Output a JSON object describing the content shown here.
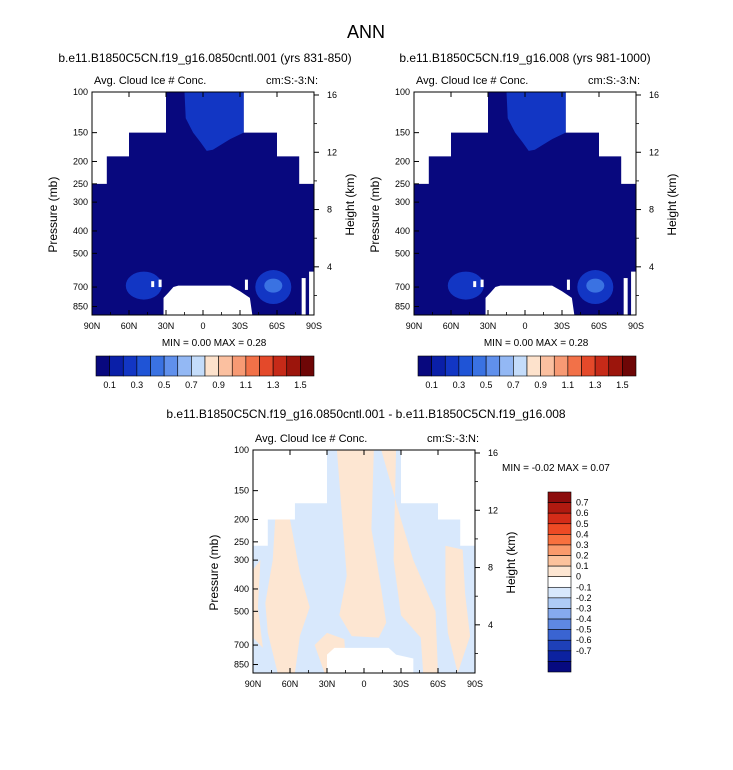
{
  "main_title": "ANN",
  "chart_data": [
    {
      "type": "heatmap",
      "title": "b.e11.B1850C5CN.f19_g16.0850cntl.001 (yrs 831-850)",
      "subtitle_left": "Avg. Cloud Ice # Conc.",
      "subtitle_right": "cm:S:-3:N:",
      "xlabel": "",
      "ylabel": "Pressure (mb)",
      "ylabel_right": "Height (km)",
      "x_ticks": [
        "90N",
        "60N",
        "30N",
        "0",
        "30S",
        "60S",
        "90S"
      ],
      "x_values": [
        90,
        60,
        30,
        0,
        -30,
        -60,
        -90
      ],
      "y_ticks": [
        "100",
        "150",
        "200",
        "250",
        "300",
        "400",
        "500",
        "700",
        "850"
      ],
      "y_values": [
        100,
        150,
        200,
        250,
        300,
        400,
        500,
        700,
        850
      ],
      "y_right_ticks": [
        "16",
        "12",
        "8",
        "4"
      ],
      "y_right_values": [
        16,
        12,
        8,
        4
      ],
      "stats": {
        "min_label": "MIN =",
        "min": "0.00",
        "max_label": "MAX =",
        "max": "0.28"
      },
      "zrange": [
        0,
        0.28
      ]
    },
    {
      "type": "heatmap",
      "title": "b.e11.B1850C5CN.f19_g16.008 (yrs 981-1000)",
      "subtitle_left": "Avg. Cloud Ice # Conc.",
      "subtitle_right": "cm:S:-3:N:",
      "xlabel": "",
      "ylabel": "Pressure (mb)",
      "ylabel_right": "Height (km)",
      "x_ticks": [
        "90N",
        "60N",
        "30N",
        "0",
        "30S",
        "60S",
        "90S"
      ],
      "x_values": [
        90,
        60,
        30,
        0,
        -30,
        -60,
        -90
      ],
      "y_ticks": [
        "100",
        "150",
        "200",
        "250",
        "300",
        "400",
        "500",
        "700",
        "850"
      ],
      "y_values": [
        100,
        150,
        200,
        250,
        300,
        400,
        500,
        700,
        850
      ],
      "y_right_ticks": [
        "16",
        "12",
        "8",
        "4"
      ],
      "y_right_values": [
        16,
        12,
        8,
        4
      ],
      "stats": {
        "min_label": "MIN =",
        "min": "0.00",
        "max_label": "MAX =",
        "max": "0.28"
      },
      "zrange": [
        0,
        0.28
      ]
    },
    {
      "type": "heatmap",
      "title": "b.e11.B1850C5CN.f19_g16.0850cntl.001 - b.e11.B1850C5CN.f19_g16.008",
      "subtitle_left": "Avg. Cloud Ice # Conc.",
      "subtitle_right": "cm:S:-3:N:",
      "xlabel": "",
      "ylabel": "Pressure (mb)",
      "ylabel_right": "Height (km)",
      "x_ticks": [
        "90N",
        "60N",
        "30N",
        "0",
        "30S",
        "60S",
        "90S"
      ],
      "x_values": [
        90,
        60,
        30,
        0,
        -30,
        -60,
        -90
      ],
      "y_ticks": [
        "100",
        "150",
        "200",
        "250",
        "300",
        "400",
        "500",
        "700",
        "850"
      ],
      "y_values": [
        100,
        150,
        200,
        250,
        300,
        400,
        500,
        700,
        850
      ],
      "y_right_ticks": [
        "16",
        "12",
        "8",
        "4"
      ],
      "y_right_values": [
        16,
        12,
        8,
        4
      ],
      "stats": {
        "min_label": "MIN =",
        "min": "-0.02",
        "max_label": "MAX =",
        "max": "0.07"
      },
      "zrange": [
        -0.02,
        0.07
      ]
    }
  ],
  "colorbar_abs": {
    "labels": [
      "0.1",
      "0.3",
      "0.5",
      "0.7",
      "0.9",
      "1.1",
      "1.3",
      "1.5"
    ],
    "colors": [
      "#08087e",
      "#0a1fa8",
      "#1236c4",
      "#1f54d6",
      "#3a72e2",
      "#6090ec",
      "#93b8f4",
      "#c4dcfa",
      "#fde2cc",
      "#fbc0a0",
      "#f79a74",
      "#f27148",
      "#e4492a",
      "#c62a18",
      "#9c150c",
      "#6e0606"
    ]
  },
  "colorbar_diff": {
    "labels": [
      "0.7",
      "0.6",
      "0.5",
      "0.4",
      "0.3",
      "0.2",
      "0.1",
      "0",
      "-0.1",
      "-0.2",
      "-0.3",
      "-0.4",
      "-0.5",
      "-0.6",
      "-0.7"
    ],
    "colors": [
      "#8c0c0c",
      "#b01a10",
      "#d42c18",
      "#ee4a24",
      "#f8703e",
      "#fa9a6c",
      "#fcc29c",
      "#fde6d2",
      "#ffffff",
      "#d8e8fc",
      "#aecbf6",
      "#86aaee",
      "#5e88e2",
      "#3a64d2",
      "#1e40b8",
      "#0c22a0",
      "#060a80"
    ]
  },
  "colors": {
    "dark_blue": "#08087e",
    "mid_blue": "#1236c4",
    "light_blue": "#3a72e2",
    "diff_blue": "#d8e8fc",
    "diff_orange": "#fde6d2"
  }
}
